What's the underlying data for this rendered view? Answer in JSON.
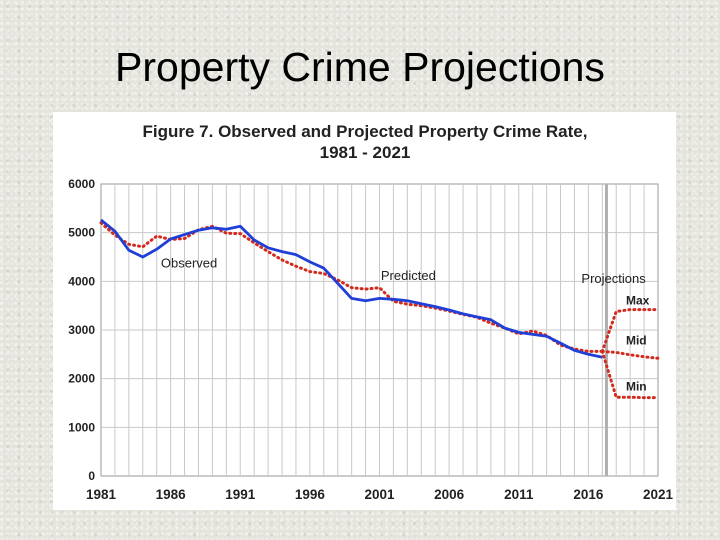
{
  "slide": {
    "title": "Property Crime Projections"
  },
  "colors": {
    "observed": "#1f3fd6",
    "predicted": "#d42a1e",
    "grid": "#c8c8c8",
    "divider": "#b0b0b0"
  },
  "chart_data": {
    "type": "line",
    "title_lines": [
      "Figure 7. Observed and Projected Property Crime Rate,",
      "1981 - 2021"
    ],
    "xlabel": "",
    "ylabel": "",
    "xlim": [
      1981,
      2021
    ],
    "ylim": [
      0,
      6000
    ],
    "grid": true,
    "x_ticks": [
      1981,
      1986,
      1991,
      1996,
      2001,
      2006,
      2011,
      2016,
      2021
    ],
    "y_ticks": [
      0,
      1000,
      2000,
      3000,
      4000,
      5000,
      6000
    ],
    "series": [
      {
        "style": "solid",
        "x": [
          1981,
          1982,
          1983,
          1984,
          1985,
          1986,
          1987,
          1988,
          1989,
          1990,
          1991,
          1992,
          1993,
          1994,
          1995,
          1996,
          1997,
          1998,
          1999,
          2000,
          2001,
          2002,
          2003,
          2004,
          2005,
          2006,
          2007,
          2008,
          2009,
          2010,
          2011,
          2012,
          2013,
          2014,
          2015,
          2016,
          2017
        ],
        "y": [
          5260,
          5030,
          4640,
          4500,
          4660,
          4870,
          4960,
          5050,
          5100,
          5070,
          5130,
          4850,
          4690,
          4610,
          4550,
          4400,
          4270,
          3960,
          3650,
          3600,
          3650,
          3630,
          3600,
          3540,
          3480,
          3410,
          3330,
          3270,
          3210,
          3040,
          2950,
          2910,
          2870,
          2730,
          2580,
          2500,
          2440
        ]
      },
      {
        "style": "dotted",
        "x": [
          1981,
          1982,
          1983,
          1984,
          1985,
          1986,
          1987,
          1988,
          1989,
          1990,
          1991,
          1992,
          1993,
          1994,
          1995,
          1996,
          1997,
          1998,
          1999,
          2000,
          2001,
          2002,
          2003,
          2004,
          2005,
          2006,
          2007,
          2008,
          2009,
          2010,
          2011,
          2012,
          2013,
          2014,
          2015,
          2016,
          2017
        ],
        "y": [
          5200,
          4950,
          4760,
          4710,
          4930,
          4860,
          4880,
          5060,
          5130,
          4990,
          4980,
          4790,
          4610,
          4440,
          4310,
          4200,
          4160,
          4030,
          3870,
          3840,
          3870,
          3590,
          3530,
          3500,
          3450,
          3390,
          3320,
          3260,
          3140,
          3040,
          2920,
          2980,
          2890,
          2690,
          2610,
          2560,
          2560
        ]
      },
      {
        "style": "dotted",
        "x": [
          2017,
          2018,
          2019,
          2020,
          2021
        ],
        "y": [
          2560,
          3380,
          3420,
          3420,
          3420
        ]
      },
      {
        "style": "dotted",
        "x": [
          2017,
          2018,
          2019,
          2020,
          2021
        ],
        "y": [
          2560,
          2540,
          2490,
          2450,
          2420
        ]
      },
      {
        "style": "dotted",
        "x": [
          2017,
          2018,
          2019,
          2020,
          2021
        ],
        "y": [
          2560,
          1620,
          1620,
          1610,
          1610
        ]
      }
    ],
    "projection_start": 2017.3,
    "annotations": [
      {
        "text": "Observed",
        "x": 1985.3,
        "y": 4280,
        "bold": false
      },
      {
        "text": "Predicted",
        "x": 2001.1,
        "y": 4030,
        "bold": false
      },
      {
        "text": "Projections",
        "x": 2015.5,
        "y": 3970,
        "bold": false
      },
      {
        "text": "Max",
        "x": 2018.7,
        "y": 3520,
        "bold": true
      },
      {
        "text": "Mid",
        "x": 2018.7,
        "y": 2700,
        "bold": true
      },
      {
        "text": "Min",
        "x": 2018.7,
        "y": 1760,
        "bold": true
      }
    ]
  }
}
